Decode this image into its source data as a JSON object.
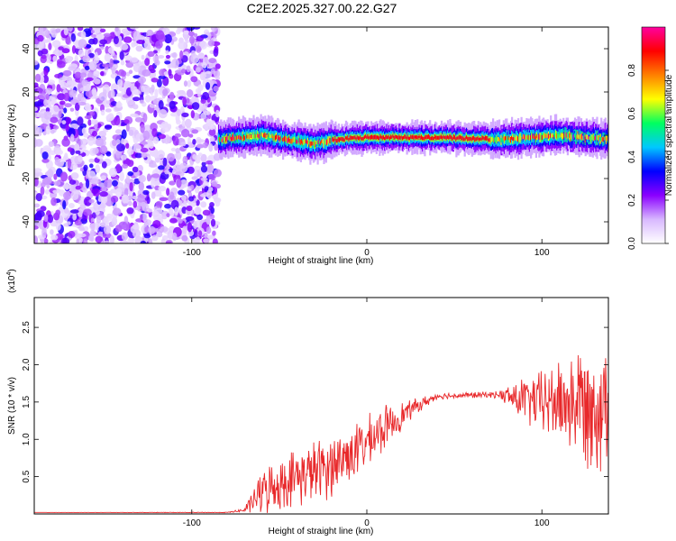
{
  "title": "C2E2.2025.327.00.22.G27",
  "chart_data": [
    {
      "type": "heatmap",
      "xlabel": "Height of straight line (km)",
      "ylabel": "Frequency (Hz)",
      "xlim": [
        -190,
        138
      ],
      "ylim": [
        -50,
        50
      ],
      "x_ticks": [
        -100,
        0,
        100
      ],
      "x_tick_labels": [
        "-100",
        "0",
        "100"
      ],
      "y_ticks": [
        -40,
        -20,
        0,
        20,
        40
      ],
      "y_tick_labels": [
        "-40",
        "-20",
        "0",
        "20",
        "40"
      ],
      "colorbar": {
        "label": "Normalized spectral amplitude",
        "range": [
          0,
          1
        ],
        "ticks": [
          0,
          0.2,
          0.4,
          0.6,
          0.8
        ],
        "tick_labels": [
          "0.0",
          "0.2",
          "0.4",
          "0.6",
          "0.8"
        ],
        "colors": [
          "#ffffff",
          "#d8b8ff",
          "#8a00ff",
          "#0000ff",
          "#00c8ff",
          "#00ff60",
          "#ffff00",
          "#ff8000",
          "#ff0000",
          "#ff00a0"
        ]
      },
      "signal_band": {
        "x_range": [
          -85,
          138
        ],
        "center_freq_hz": [
          {
            "x": -85,
            "f": -2
          },
          {
            "x": -60,
            "f": 0
          },
          {
            "x": -45,
            "f": -2
          },
          {
            "x": -30,
            "f": -4
          },
          {
            "x": -18,
            "f": -2
          },
          {
            "x": 0,
            "f": -1
          },
          {
            "x": 40,
            "f": -1
          },
          {
            "x": 75,
            "f": -2
          },
          {
            "x": 110,
            "f": 0
          },
          {
            "x": 138,
            "f": -2
          }
        ],
        "peak_region_x": [
          -20,
          70
        ]
      },
      "noise_region_x": [
        -190,
        -85
      ]
    },
    {
      "type": "line",
      "xlabel": "Height of straight line (km)",
      "ylabel": "SNR (10 * v/v)",
      "y_multiplier_label": "(x10",
      "y_multiplier_exp": "4",
      "xlim": [
        -190,
        138
      ],
      "ylim": [
        0,
        2.9
      ],
      "x_ticks": [
        -100,
        0,
        100
      ],
      "x_tick_labels": [
        "-100",
        "0",
        "100"
      ],
      "y_ticks": [
        0.5,
        1.0,
        1.5,
        2.0,
        2.5
      ],
      "y_tick_labels": [
        "0.5",
        "1.0",
        "1.5",
        "2.0",
        "2.5"
      ],
      "color": "#e8282a",
      "envelope": [
        {
          "x": -190,
          "mean": 0.02,
          "amp": 0.0
        },
        {
          "x": -80,
          "mean": 0.02,
          "amp": 0.005
        },
        {
          "x": -70,
          "mean": 0.05,
          "amp": 0.03
        },
        {
          "x": -60,
          "mean": 0.3,
          "amp": 0.35
        },
        {
          "x": -40,
          "mean": 0.5,
          "amp": 0.45
        },
        {
          "x": -20,
          "mean": 0.65,
          "amp": 0.5
        },
        {
          "x": 0,
          "mean": 0.95,
          "amp": 0.4
        },
        {
          "x": 10,
          "mean": 1.15,
          "amp": 0.35
        },
        {
          "x": 25,
          "mean": 1.4,
          "amp": 0.15
        },
        {
          "x": 40,
          "mean": 1.58,
          "amp": 0.05
        },
        {
          "x": 75,
          "mean": 1.6,
          "amp": 0.05
        },
        {
          "x": 85,
          "mean": 1.55,
          "amp": 0.3
        },
        {
          "x": 100,
          "mean": 1.5,
          "amp": 0.5
        },
        {
          "x": 120,
          "mean": 1.5,
          "amp": 0.9
        },
        {
          "x": 138,
          "mean": 1.45,
          "amp": 1.1
        }
      ]
    }
  ]
}
